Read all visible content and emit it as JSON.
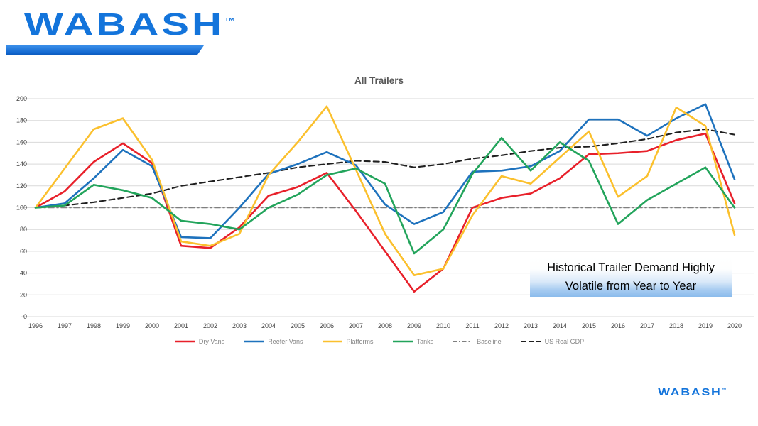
{
  "header_logo": {
    "text": "WABASH",
    "tm": "™"
  },
  "footer_logo": {
    "text": "WABASH",
    "tm": "™"
  },
  "callout": {
    "line1": "Historical Trailer Demand Highly",
    "line2": "Volatile from Year to Year"
  },
  "chart_data": {
    "type": "line",
    "title": "All Trailers",
    "x": [
      1996,
      1997,
      1998,
      1999,
      2000,
      2001,
      2002,
      2003,
      2004,
      2005,
      2006,
      2007,
      2008,
      2009,
      2010,
      2011,
      2012,
      2013,
      2014,
      2015,
      2016,
      2017,
      2018,
      2019,
      2020
    ],
    "series": [
      {
        "name": "Dry Vans",
        "color": "#e8202a",
        "style": "solid",
        "values": [
          100,
          115,
          142,
          159,
          141,
          65,
          63,
          82,
          111,
          119,
          132,
          97,
          60,
          23,
          44,
          100,
          109,
          113,
          127,
          149,
          150,
          152,
          162,
          168,
          104
        ]
      },
      {
        "name": "Reefer Vans",
        "color": "#1e72bd",
        "style": "solid",
        "values": [
          100,
          104,
          127,
          153,
          138,
          73,
          72,
          100,
          131,
          140,
          151,
          139,
          103,
          85,
          96,
          133,
          134,
          138,
          152,
          181,
          181,
          166,
          182,
          195,
          126
        ]
      },
      {
        "name": "Platforms",
        "color": "#fbc02d",
        "style": "solid",
        "values": [
          100,
          136,
          172,
          182,
          144,
          69,
          65,
          76,
          130,
          160,
          193,
          135,
          76,
          38,
          44,
          93,
          129,
          122,
          146,
          170,
          110,
          129,
          192,
          175,
          75
        ]
      },
      {
        "name": "Tanks",
        "color": "#22a45b",
        "style": "solid",
        "values": [
          100,
          102,
          121,
          116,
          109,
          88,
          85,
          80,
          100,
          112,
          130,
          136,
          122,
          58,
          80,
          131,
          164,
          134,
          160,
          143,
          85,
          107,
          122,
          137,
          100
        ]
      },
      {
        "name": "Baseline",
        "color": "#7f7f7f",
        "style": "dashdot",
        "values": [
          100,
          100,
          100,
          100,
          100,
          100,
          100,
          100,
          100,
          100,
          100,
          100,
          100,
          100,
          100,
          100,
          100,
          100,
          100,
          100,
          100,
          100,
          100,
          100,
          100
        ]
      },
      {
        "name": "US Real GDP",
        "color": "#1f1f1f",
        "style": "dash",
        "values": [
          100,
          102,
          105,
          109,
          113,
          120,
          124,
          128,
          132,
          137,
          140,
          143,
          142,
          137,
          140,
          145,
          148,
          152,
          155,
          156,
          159,
          163,
          169,
          172,
          167
        ]
      }
    ],
    "ylim": [
      0,
      200
    ],
    "ytick_step": 20,
    "grid": "horizontal",
    "legend_position": "bottom",
    "colors": {
      "gridline": "#d9d9d9",
      "axis_text": "#404040",
      "legend_text": "#848484",
      "title_text": "#595959"
    }
  }
}
